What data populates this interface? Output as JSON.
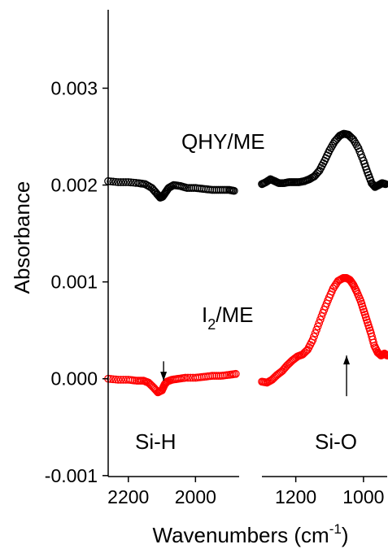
{
  "chart_data": {
    "type": "scatter",
    "ylabel": "Absorbance",
    "xlabel_main": "Wavenumbers (cm",
    "xlabel_sup": "-1",
    "xlabel_close": ")",
    "y_ticks": [
      "-0.001",
      "0.000",
      "0.001",
      "0.002",
      "0.003"
    ],
    "ylim": [
      -0.00101,
      0.00381
    ],
    "panels": [
      {
        "name": "left",
        "xlim": [
          2260,
          1870
        ],
        "x_ticks": [
          "2200",
          "2000"
        ],
        "x_tick_values": [
          2200,
          2000
        ]
      },
      {
        "name": "right",
        "xlim": [
          1300,
          930
        ],
        "x_ticks": [
          "1200",
          "1000"
        ],
        "x_tick_values": [
          1200,
          1000
        ]
      }
    ],
    "series": [
      {
        "name": "QHY/ME",
        "color": "#000000",
        "segments": [
          {
            "panel": "left",
            "points": [
              [
                2260,
                0.00204
              ],
              [
                2230,
                0.00203
              ],
              [
                2200,
                0.00203
              ],
              [
                2170,
                0.00202
              ],
              [
                2150,
                0.00201
              ],
              [
                2130,
                0.00197
              ],
              [
                2115,
                0.00191
              ],
              [
                2105,
                0.00187
              ],
              [
                2098,
                0.00188
              ],
              [
                2090,
                0.00192
              ],
              [
                2080,
                0.00197
              ],
              [
                2065,
                0.002
              ],
              [
                2045,
                0.00199
              ],
              [
                2025,
                0.00197
              ],
              [
                2000,
                0.00197
              ],
              [
                1975,
                0.00196
              ],
              [
                1950,
                0.00195
              ],
              [
                1925,
                0.00195
              ],
              [
                1900,
                0.00195
              ],
              [
                1885,
                0.00194
              ]
            ]
          },
          {
            "panel": "right",
            "points": [
              [
                1300,
                0.00201
              ],
              [
                1288,
                0.00203
              ],
              [
                1275,
                0.00206
              ],
              [
                1262,
                0.00204
              ],
              [
                1250,
                0.00202
              ],
              [
                1235,
                0.00202
              ],
              [
                1220,
                0.00203
              ],
              [
                1205,
                0.00203
              ],
              [
                1190,
                0.00203
              ],
              [
                1175,
                0.00204
              ],
              [
                1160,
                0.00206
              ],
              [
                1145,
                0.00209
              ],
              [
                1130,
                0.00215
              ],
              [
                1115,
                0.00225
              ],
              [
                1100,
                0.00236
              ],
              [
                1085,
                0.00245
              ],
              [
                1070,
                0.00251
              ],
              [
                1058,
                0.00253
              ],
              [
                1045,
                0.00252
              ],
              [
                1030,
                0.00247
              ],
              [
                1015,
                0.00238
              ],
              [
                1000,
                0.00225
              ],
              [
                988,
                0.00213
              ],
              [
                976,
                0.00202
              ],
              [
                966,
                0.00198
              ],
              [
                955,
                0.002
              ],
              [
                945,
                0.00202
              ],
              [
                935,
                0.00201
              ]
            ]
          }
        ]
      },
      {
        "name": "I2/ME",
        "label_main": "I",
        "label_sub": "2",
        "label_rest": "/ME",
        "color": "#ff0000",
        "segments": [
          {
            "panel": "left",
            "points": [
              [
                2260,
                0.0
              ],
              [
                2230,
                -1e-05
              ],
              [
                2200,
                -1e-05
              ],
              [
                2175,
                -2e-05
              ],
              [
                2155,
                -2e-05
              ],
              [
                2140,
                -4e-05
              ],
              [
                2125,
                -9e-05
              ],
              [
                2112,
                -0.00014
              ],
              [
                2100,
                -0.00012
              ],
              [
                2092,
                -6e-05
              ],
              [
                2085,
                -3e-05
              ],
              [
                2070,
                -1e-05
              ],
              [
                2050,
                0.0
              ],
              [
                2030,
                1e-05
              ],
              [
                2000,
                1e-05
              ],
              [
                1975,
                2e-05
              ],
              [
                1950,
                3e-05
              ],
              [
                1925,
                3e-05
              ],
              [
                1900,
                4e-05
              ],
              [
                1880,
                5e-05
              ]
            ]
          },
          {
            "panel": "right",
            "points": [
              [
                1300,
                -3e-05
              ],
              [
                1285,
                -4e-05
              ],
              [
                1270,
                -1e-05
              ],
              [
                1255,
                4e-05
              ],
              [
                1240,
                8e-05
              ],
              [
                1225,
                0.00014
              ],
              [
                1210,
                0.00019
              ],
              [
                1195,
                0.00023
              ],
              [
                1180,
                0.00025
              ],
              [
                1165,
                0.0003
              ],
              [
                1150,
                0.0004
              ],
              [
                1135,
                0.00054
              ],
              [
                1120,
                0.00068
              ],
              [
                1105,
                0.00081
              ],
              [
                1090,
                0.00093
              ],
              [
                1075,
                0.00101
              ],
              [
                1060,
                0.00104
              ],
              [
                1050,
                0.00104
              ],
              [
                1040,
                0.00102
              ],
              [
                1030,
                0.00097
              ],
              [
                1020,
                0.0009
              ],
              [
                1008,
                0.0008
              ],
              [
                998,
                0.00069
              ],
              [
                988,
                0.00058
              ],
              [
                978,
                0.00047
              ],
              [
                968,
                0.00034
              ],
              [
                958,
                0.00027
              ],
              [
                948,
                0.00024
              ],
              [
                938,
                0.00026
              ],
              [
                930,
                0.00024
              ]
            ]
          }
        ]
      }
    ],
    "annotations": [
      {
        "text": "Si-H",
        "marker": "down-arrow",
        "x": 2095,
        "y_from": 0.00018,
        "y_to": -2e-05
      },
      {
        "text": "Si-O",
        "marker": "up-arrow",
        "x": 1050,
        "y_from": -0.00018,
        "y_to": 0.00024
      }
    ]
  }
}
